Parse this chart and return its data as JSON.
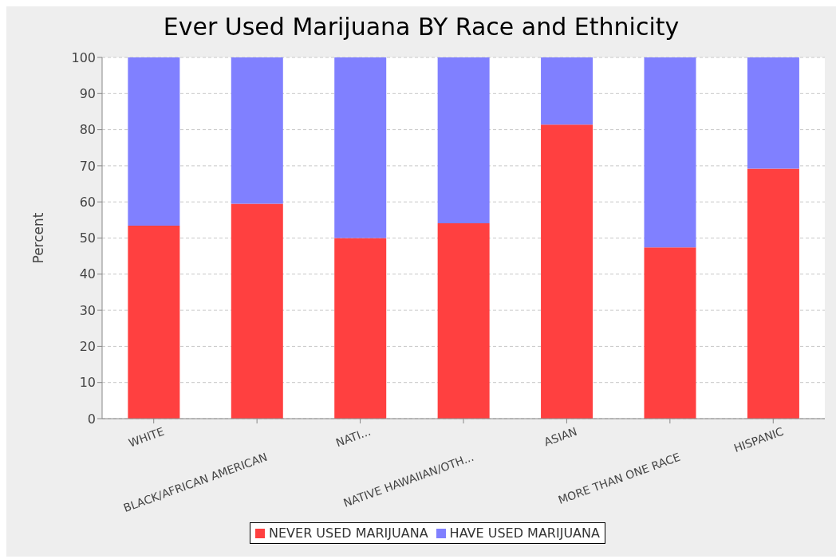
{
  "chart_data": {
    "type": "bar",
    "title": "Ever Used Marijuana BY Race and Ethnicity",
    "ylabel": "Percent",
    "categories": [
      "WHITE",
      "BLACK/AFRICAN AMERICAN",
      "NATI...",
      "NATIVE HAWAIIAN/OTH...",
      "ASIAN",
      "MORE THAN ONE RACE",
      "HISPANIC"
    ],
    "series": [
      {
        "name": "NEVER USED MARIJUANA",
        "color": "#ff4040",
        "values": [
          53.4,
          59.5,
          50,
          54.1,
          81.4,
          47.4,
          69.2
        ]
      },
      {
        "name": "HAVE USED MARIJUANA",
        "color": "#8080ff",
        "values": [
          46.6,
          40.5,
          50,
          45.9,
          18.6,
          52.6,
          30.8
        ]
      }
    ],
    "stacked": true,
    "ylim": [
      0,
      100
    ],
    "yticks": [
      0,
      10,
      20,
      30,
      40,
      50,
      60,
      70,
      80,
      90,
      100
    ],
    "grid": "y",
    "legend": "bottom"
  }
}
